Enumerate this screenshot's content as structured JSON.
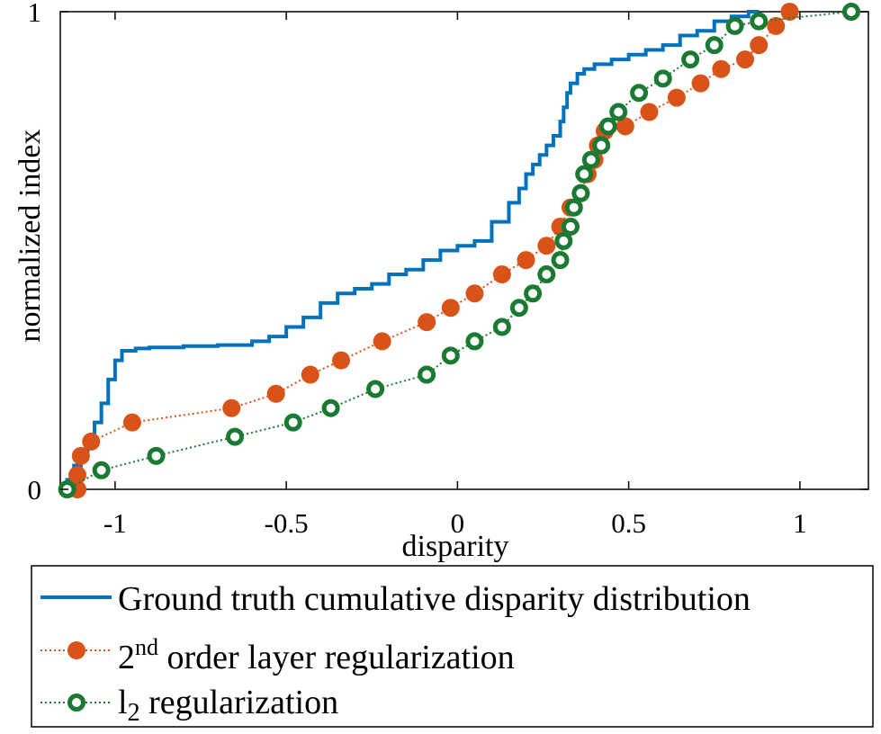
{
  "chart_data": {
    "type": "line",
    "xlabel": "disparity",
    "ylabel": "normalized index",
    "xlim": [
      -1.16,
      1.2
    ],
    "ylim": [
      0,
      1
    ],
    "x_ticks": [
      -1,
      -0.5,
      0,
      0.5,
      1
    ],
    "x_tick_labels": [
      "-1",
      "-0.5",
      "0",
      "0.5",
      "1"
    ],
    "y_ticks": [
      0,
      1
    ],
    "y_tick_labels": [
      "0",
      "1"
    ],
    "grid": false,
    "legend_position": "below",
    "series": [
      {
        "name": "Ground truth cumulative disparity distribution",
        "legend_label": {
          "main": "Ground truth cumulative disparity distribution"
        },
        "color": "#0072BD",
        "style": "solid-step",
        "marker": "none",
        "x": [
          -1.14,
          -1.12,
          -1.1,
          -1.08,
          -1.06,
          -1.04,
          -1.02,
          -1.0,
          -0.98,
          -0.96,
          -0.94,
          -0.9,
          -0.8,
          -0.7,
          -0.6,
          -0.55,
          -0.5,
          -0.45,
          -0.4,
          -0.35,
          -0.3,
          -0.25,
          -0.2,
          -0.15,
          -0.1,
          -0.05,
          0.0,
          0.05,
          0.1,
          0.15,
          0.18,
          0.2,
          0.22,
          0.24,
          0.26,
          0.28,
          0.3,
          0.31,
          0.32,
          0.33,
          0.35,
          0.37,
          0.4,
          0.45,
          0.5,
          0.55,
          0.6,
          0.65,
          0.7,
          0.75,
          0.8,
          0.85,
          0.88
        ],
        "y": [
          0.0,
          0.02,
          0.05,
          0.08,
          0.11,
          0.14,
          0.18,
          0.23,
          0.27,
          0.29,
          0.29,
          0.295,
          0.297,
          0.3,
          0.302,
          0.31,
          0.32,
          0.34,
          0.36,
          0.39,
          0.41,
          0.42,
          0.43,
          0.45,
          0.46,
          0.48,
          0.5,
          0.51,
          0.52,
          0.56,
          0.6,
          0.63,
          0.66,
          0.68,
          0.7,
          0.72,
          0.74,
          0.77,
          0.8,
          0.83,
          0.85,
          0.87,
          0.88,
          0.89,
          0.9,
          0.91,
          0.92,
          0.93,
          0.95,
          0.96,
          0.98,
          0.99,
          1.0
        ]
      },
      {
        "name": "2nd order layer regularization",
        "legend_label": {
          "prefix": "2",
          "superscript": "nd",
          "rest": " order layer regularization"
        },
        "color": "#D95319",
        "style": "dotted",
        "marker": "filled-circle",
        "x": [
          -1.11,
          -1.11,
          -1.1,
          -1.07,
          -0.95,
          -0.66,
          -0.53,
          -0.43,
          -0.34,
          -0.22,
          -0.09,
          -0.02,
          0.05,
          0.13,
          0.2,
          0.26,
          0.3,
          0.33,
          0.36,
          0.38,
          0.4,
          0.41,
          0.43,
          0.49,
          0.56,
          0.64,
          0.71,
          0.77,
          0.84,
          0.88,
          0.93,
          0.97
        ],
        "y": [
          0.0,
          0.03,
          0.07,
          0.1,
          0.14,
          0.17,
          0.2,
          0.24,
          0.27,
          0.31,
          0.35,
          0.38,
          0.41,
          0.45,
          0.48,
          0.51,
          0.55,
          0.59,
          0.62,
          0.66,
          0.69,
          0.72,
          0.75,
          0.76,
          0.79,
          0.82,
          0.85,
          0.88,
          0.9,
          0.93,
          0.97,
          1.0
        ]
      },
      {
        "name": "l2 regularization",
        "legend_label": {
          "prefix": "l",
          "subscript": "2",
          "rest": " regularization"
        },
        "color": "#1B7A32",
        "style": "dotted",
        "marker": "open-circle",
        "x": [
          -1.14,
          -1.04,
          -0.88,
          -0.65,
          -0.48,
          -0.37,
          -0.24,
          -0.09,
          -0.02,
          0.05,
          0.13,
          0.18,
          0.22,
          0.26,
          0.3,
          0.31,
          0.33,
          0.34,
          0.36,
          0.37,
          0.39,
          0.42,
          0.44,
          0.47,
          0.53,
          0.6,
          0.68,
          0.75,
          0.81,
          0.88,
          1.15
        ],
        "y": [
          0.0,
          0.04,
          0.07,
          0.11,
          0.14,
          0.17,
          0.21,
          0.24,
          0.28,
          0.31,
          0.34,
          0.38,
          0.41,
          0.45,
          0.48,
          0.52,
          0.55,
          0.59,
          0.62,
          0.66,
          0.69,
          0.72,
          0.76,
          0.79,
          0.83,
          0.86,
          0.9,
          0.93,
          0.97,
          0.98,
          1.0
        ]
      }
    ]
  }
}
